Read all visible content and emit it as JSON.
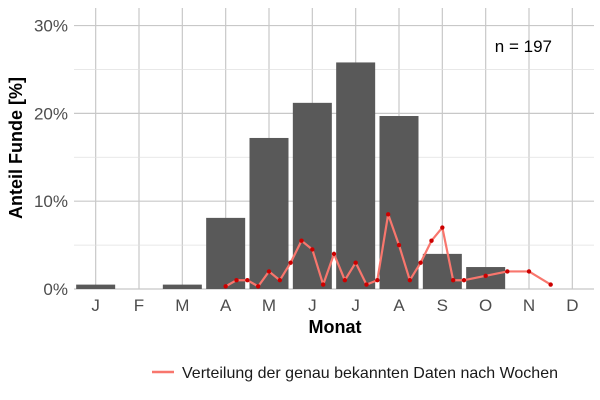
{
  "chart_data": {
    "type": "bar",
    "categories": [
      "J",
      "F",
      "M",
      "A",
      "M",
      "J",
      "J",
      "A",
      "S",
      "O",
      "N",
      "D"
    ],
    "values": [
      0.5,
      0,
      0.5,
      8.1,
      17.2,
      21.2,
      25.8,
      19.7,
      4.0,
      2.5,
      0,
      0
    ],
    "xlabel": "Monat",
    "ylabel": "Anteil Funde [%]",
    "ylim": [
      0,
      30
    ],
    "yticks": [
      0,
      10,
      20,
      30
    ],
    "ytick_labels": [
      "0%",
      "10%",
      "20%",
      "30%"
    ],
    "annotation": "n = 197",
    "bar_color": "#595959",
    "grid": true,
    "legend_position": "bottom-right",
    "series": [
      {
        "name": "Verteilung der genau bekannten Daten nach Wochen",
        "type": "line",
        "color": "#f8766d",
        "point_color": "#cc0000",
        "x": [
          3.0,
          3.25,
          3.5,
          3.75,
          4.0,
          4.25,
          4.5,
          4.75,
          5.0,
          5.25,
          5.5,
          5.75,
          6.0,
          6.25,
          6.5,
          6.75,
          7.0,
          7.25,
          7.5,
          7.75,
          8.0,
          8.25,
          8.5,
          9.0,
          9.5,
          10.0,
          10.5
        ],
        "values": [
          0.3,
          1.0,
          1.0,
          0.3,
          2.0,
          1.0,
          3.0,
          5.5,
          4.5,
          0.5,
          4.0,
          1.0,
          3.0,
          0.5,
          1.0,
          8.5,
          5.0,
          1.0,
          3.0,
          5.5,
          7.0,
          1.0,
          1.0,
          1.5,
          2.0,
          2.0,
          0.5
        ]
      }
    ]
  }
}
